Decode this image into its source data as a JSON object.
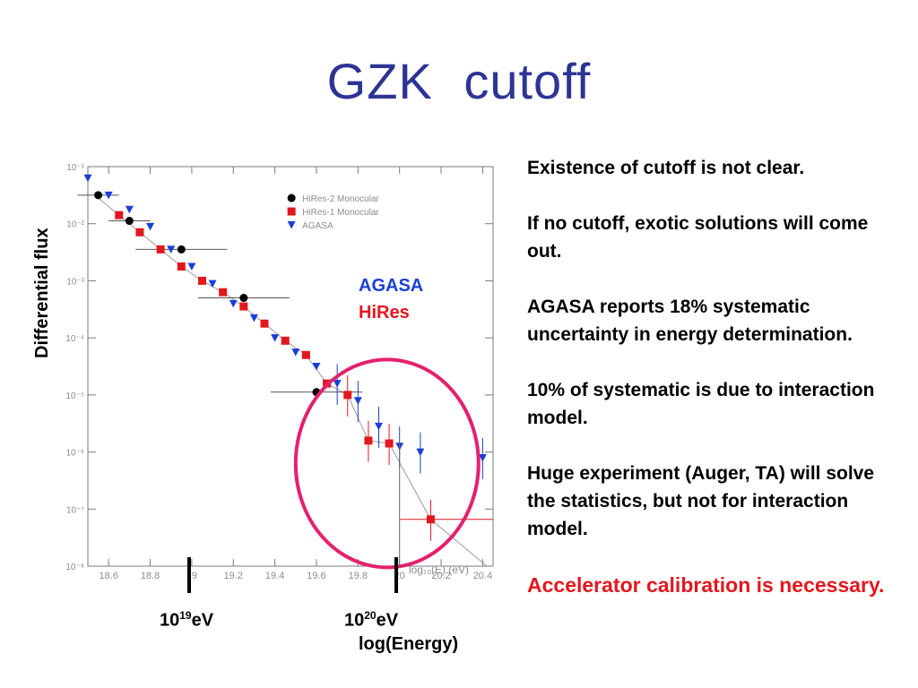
{
  "slide": {
    "title": "GZK  cutoff",
    "bullets": [
      "Existence of cutoff is not clear.",
      "If no cutoff, exotic solutions will come out.",
      "AGASA reports 18% systematic uncertainty in energy determination.",
      "10% of systematic is due to interaction model.",
      "Huge experiment (Auger, TA) will solve the statistics, but not for interaction model."
    ],
    "conclusion": "Accelerator calibration is necessary.",
    "overlay": {
      "agasa": "AGASA",
      "hires": "HiRes",
      "y_axis_label": "Differential flux",
      "marker_1e19": {
        "base": "10",
        "exp": "19",
        "unit": "eV"
      },
      "marker_1e20": {
        "base": "10",
        "exp": "20",
        "unit": "eV"
      },
      "energy_label": "log(Energy)"
    }
  },
  "colors": {
    "title": "#2c3494",
    "agasa": "#1a3fd6",
    "hires1": "#e3171e",
    "hires2": "#000000",
    "circle": "#e3216e",
    "conclusion": "#e3171e"
  },
  "chart_data": {
    "type": "scatter",
    "xlabel": "log₁₀(E) (eV)",
    "ylabel": "",
    "xlim": [
      18.5,
      20.45
    ],
    "ylim": [
      -8,
      -1
    ],
    "log_y": true,
    "x_ticks": [
      "18.6",
      "18.8",
      "19",
      "19.2",
      "19.4",
      "19.6",
      "19.8",
      "20",
      "20.2",
      "20.4"
    ],
    "y_ticks": [
      "10⁻¹",
      "10⁻²",
      "10⁻³",
      "10⁻⁴",
      "10⁻⁵",
      "10⁻⁶",
      "10⁻⁷",
      "10⁻⁸"
    ],
    "legend_position": "top-right",
    "series": [
      {
        "name": "HiRes-2 Monocular",
        "marker": "circle",
        "x": [
          18.55,
          18.7,
          18.95,
          19.25,
          19.6
        ],
        "y": [
          -1.5,
          -1.95,
          -2.45,
          -3.3,
          -4.95
        ]
      },
      {
        "name": "HiRes-1 Monocular",
        "marker": "square",
        "x": [
          18.65,
          18.75,
          18.85,
          18.95,
          19.05,
          19.15,
          19.25,
          19.35,
          19.45,
          19.55,
          19.65,
          19.75,
          19.85,
          19.95,
          20.15
        ],
        "y": [
          -1.85,
          -2.15,
          -2.45,
          -2.75,
          -3.0,
          -3.2,
          -3.45,
          -3.75,
          -4.05,
          -4.3,
          -4.8,
          -5.0,
          -5.8,
          -5.85,
          -7.18
        ]
      },
      {
        "name": "AGASA",
        "marker": "triangle-down",
        "x": [
          18.5,
          18.6,
          18.7,
          18.8,
          18.9,
          19.0,
          19.1,
          19.2,
          19.3,
          19.4,
          19.5,
          19.6,
          19.7,
          19.8,
          19.9,
          20.0,
          20.1,
          20.4
        ],
        "y": [
          -1.2,
          -1.5,
          -1.75,
          -2.05,
          -2.45,
          -2.75,
          -3.05,
          -3.4,
          -3.65,
          -4.0,
          -4.25,
          -4.5,
          -4.8,
          -5.1,
          -5.55,
          -5.9,
          -6.0,
          -6.1
        ]
      }
    ]
  }
}
